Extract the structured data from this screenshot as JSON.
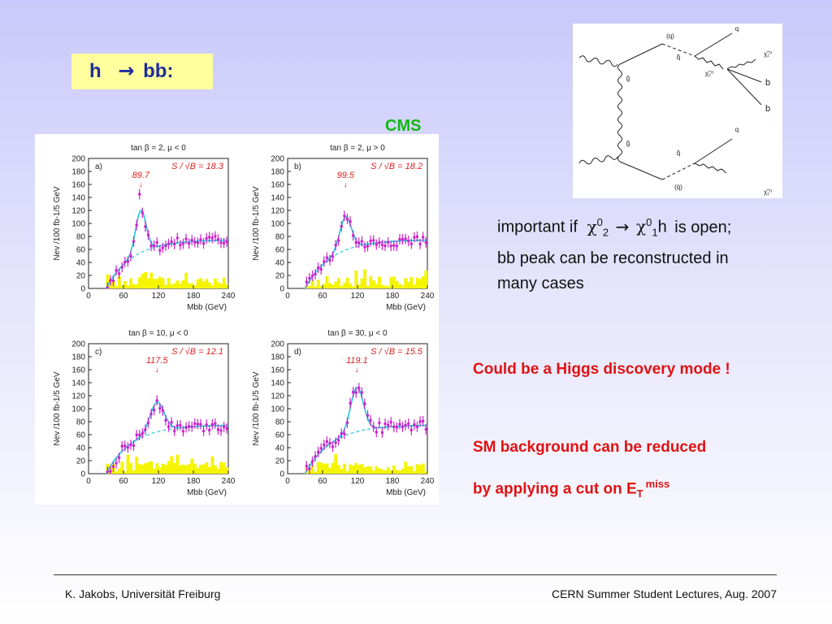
{
  "title": {
    "h": "h",
    "arrow": "→",
    "bb": "bb:"
  },
  "cms_label": "CMS",
  "feynman": {
    "labels": [
      "(q)",
      "q",
      "q̃",
      "g̃",
      "χ̃₂⁰",
      "χ̃₁⁰",
      "b",
      "b",
      "g̃",
      "q",
      "q̃",
      "(q̄)",
      "χ̃₁⁰"
    ]
  },
  "text": {
    "important_prefix": "important if",
    "chi": "χ",
    "sup0": "0",
    "sub2": "2",
    "sub1": "1",
    "arrow": "→",
    "h_suffix": "h",
    "is_open": "is open;",
    "bb_peak_line1": "bb peak can be reconstructed in",
    "bb_peak_line2": "many cases"
  },
  "red": {
    "discovery": "Could be a Higgs discovery mode !",
    "sm_line1": "SM background can be reduced",
    "sm_line2_prefix": "by applying a cut  on E",
    "sm_line2_sub": "T",
    "sm_line2_sup": "miss"
  },
  "footer": {
    "left": "K. Jakobs,  Universität Freiburg",
    "right": "CERN Summer Student Lectures,  Aug. 2007"
  },
  "colors": {
    "title_text": "#1e2d9a",
    "title_bg": "#ffff9e",
    "cms": "#12b812",
    "red": "#e11212",
    "data_points": "#cc22cc",
    "fit_curve": "#33ccdd",
    "background_hist": "#f5f500"
  },
  "chart_data": [
    {
      "type": "scatter",
      "panel": "a)",
      "header": "tan β = 2, μ < 0",
      "annotation": "S / √B = 18.3",
      "peak_label": "89.7",
      "arrow": "↓",
      "xlabel": "Mbb (GeV)",
      "ylabel": "Nev /100 fb-1/5 GeV",
      "xlim": [
        0,
        240
      ],
      "ylim": [
        0,
        200
      ],
      "xticks": [
        "0",
        "60",
        "120",
        "180",
        "240"
      ],
      "yticks": [
        "0",
        "20",
        "40",
        "60",
        "80",
        "100",
        "120",
        "140",
        "160",
        "180",
        "200"
      ],
      "peak": {
        "x": 89.7,
        "height": 120,
        "width": 9
      },
      "spike": {
        "x": 87,
        "y": 145
      }
    },
    {
      "type": "scatter",
      "panel": "b)",
      "header": "tan β = 2, μ > 0",
      "annotation": "S / √B = 18.2",
      "peak_label": "99.5",
      "arrow": "↓",
      "xlabel": "Mbb (GeV)",
      "ylabel": "Nev /100 fb-1/5 GeV",
      "xlim": [
        0,
        240
      ],
      "ylim": [
        0,
        200
      ],
      "xticks": [
        "0",
        "60",
        "120",
        "180",
        "240"
      ],
      "yticks": [
        "0",
        "20",
        "40",
        "60",
        "80",
        "100",
        "120",
        "140",
        "160",
        "180",
        "200"
      ],
      "peak": {
        "x": 99.5,
        "height": 110,
        "width": 10
      }
    },
    {
      "type": "scatter",
      "panel": "c)",
      "header": "tan β = 10, μ < 0",
      "annotation": "S / √B = 12.1",
      "peak_label": "117.5",
      "arrow": "↓",
      "xlabel": "Mbb (GeV)",
      "ylabel": "Nev /100 fb-1/5 GeV",
      "xlim": [
        0,
        240
      ],
      "ylim": [
        0,
        200
      ],
      "xticks": [
        "0",
        "60",
        "120",
        "180",
        "240"
      ],
      "yticks": [
        "0",
        "20",
        "40",
        "60",
        "80",
        "100",
        "120",
        "140",
        "160",
        "180",
        "200"
      ],
      "peak": {
        "x": 117.5,
        "height": 110,
        "width": 12
      }
    },
    {
      "type": "scatter",
      "panel": "d)",
      "header": "tan β = 30, μ < 0",
      "annotation": "S / √B = 15.5",
      "peak_label": "119.1",
      "arrow": "↓",
      "xlabel": "Mbb (GeV)",
      "ylabel": "Nev /100 fb-1/5 GeV",
      "xlim": [
        0,
        240
      ],
      "ylim": [
        0,
        200
      ],
      "xticks": [
        "0",
        "60",
        "120",
        "180",
        "240"
      ],
      "yticks": [
        "0",
        "20",
        "40",
        "60",
        "80",
        "100",
        "120",
        "140",
        "160",
        "180",
        "200"
      ],
      "peak": {
        "x": 119.1,
        "height": 133,
        "width": 11
      }
    }
  ]
}
